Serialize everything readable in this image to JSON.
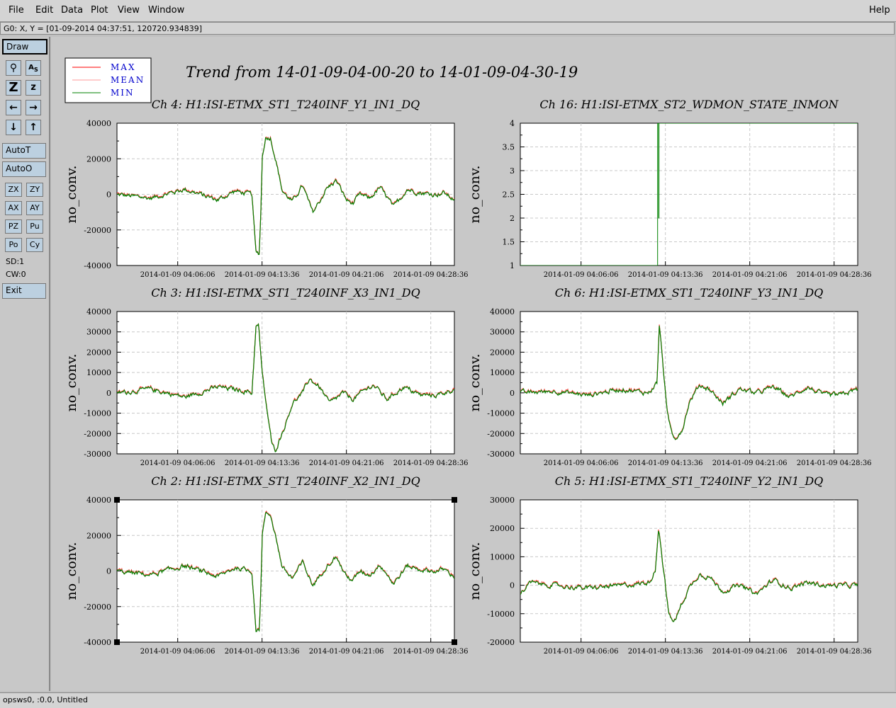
{
  "menu": {
    "file": "File",
    "edit": "Edit",
    "data": "Data",
    "plot": "Plot",
    "view": "View",
    "window": "Window",
    "help": "Help"
  },
  "coord_readout": "G0: X, Y = [01-09-2014 04:37:51, 120720.934839]",
  "toolbar": {
    "draw": "Draw",
    "autoT": "AutoT",
    "autoO": "AutoO",
    "zx": "ZX",
    "zy": "ZY",
    "ax": "AX",
    "ay": "AY",
    "pz": "PZ",
    "pu": "Pu",
    "po": "Po",
    "cy": "Cy",
    "sd": "SD:1",
    "cw": "CW:0",
    "exit": "Exit"
  },
  "status": "opsws0, :0.0, Untitled",
  "colors": {
    "max": "#ff0000",
    "mean": "#ff9999",
    "min": "#008000",
    "legend_text": "#0000cc"
  },
  "legend": {
    "max": "MAX",
    "mean": "MEAN",
    "min": "MIN"
  },
  "main_title": "Trend from 14-01-09-04-00-20 to 14-01-09-04-30-19",
  "chart_data": [
    {
      "type": "line",
      "title": "Ch 4: H1:ISI-ETMX_ST1_T240INF_Y1_IN1_DQ",
      "ylabel": "no_conv.",
      "ylim": [
        -40000,
        40000
      ],
      "yticks": [
        "40000",
        "20000",
        "0",
        "-20000",
        "-40000"
      ],
      "xticks": [
        "2014-01-09 04:06:06",
        "2014-01-09 04:13:36",
        "2014-01-09 04:21:06",
        "2014-01-09 04:28:36"
      ],
      "t": [
        0,
        0.1,
        0.2,
        0.3,
        0.35,
        0.4,
        0.412,
        0.422,
        0.428,
        0.43,
        0.44,
        0.455,
        0.47,
        0.49,
        0.52,
        0.55,
        0.58,
        0.6,
        0.62,
        0.65,
        0.68,
        0.7,
        0.72,
        0.75,
        0.78,
        0.82,
        0.86,
        0.9,
        0.94,
        0.97,
        1
      ],
      "values": [
        0,
        -2000,
        3000,
        -3000,
        2000,
        0,
        -33000,
        -33000,
        0,
        20000,
        32000,
        32000,
        20000,
        2000,
        -4000,
        5000,
        -10000,
        -4000,
        3000,
        8000,
        -3000,
        -5000,
        0,
        -2000,
        4000,
        -7000,
        3000,
        1000,
        0,
        1000,
        -3000
      ],
      "series": [
        {
          "name": "MAX"
        },
        {
          "name": "MEAN"
        },
        {
          "name": "MIN"
        }
      ]
    },
    {
      "type": "line",
      "title": "Ch 16: H1:ISI-ETMX_ST2_WDMON_STATE_INMON",
      "ylabel": "no_conv.",
      "ylim": [
        1,
        4
      ],
      "yticks": [
        "4",
        "3.5",
        "3",
        "2.5",
        "2",
        "1.5",
        "1"
      ],
      "xticks": [
        "2014-01-09 04:06:06",
        "2014-01-09 04:13:36",
        "2014-01-09 04:21:06",
        "2014-01-09 04:28:36"
      ],
      "t": [
        0,
        0.407,
        0.407,
        0.41,
        0.41,
        0.411,
        0.411,
        1
      ],
      "values": [
        1,
        1,
        4,
        4,
        2,
        2,
        4,
        4
      ],
      "series": [
        {
          "name": "MAX"
        },
        {
          "name": "MEAN"
        },
        {
          "name": "MIN"
        }
      ]
    },
    {
      "type": "line",
      "title": "Ch 3: H1:ISI-ETMX_ST1_T240INF_X3_IN1_DQ",
      "ylabel": "no_conv.",
      "ylim": [
        -30000,
        40000
      ],
      "yticks": [
        "40000",
        "30000",
        "20000",
        "10000",
        "0",
        "-10000",
        "-20000",
        "-30000"
      ],
      "xticks": [
        "2014-01-09 04:06:06",
        "2014-01-09 04:13:36",
        "2014-01-09 04:21:06",
        "2014-01-09 04:28:36"
      ],
      "t": [
        0,
        0.1,
        0.2,
        0.3,
        0.38,
        0.4,
        0.412,
        0.42,
        0.43,
        0.45,
        0.46,
        0.47,
        0.5,
        0.52,
        0.55,
        0.57,
        0.6,
        0.63,
        0.67,
        0.7,
        0.73,
        0.76,
        0.8,
        0.85,
        0.9,
        0.95,
        1
      ],
      "values": [
        0,
        2000,
        -2000,
        3000,
        1000,
        0,
        33000,
        33000,
        10000,
        -15000,
        -26000,
        -28000,
        -15000,
        -5000,
        0,
        7000,
        3000,
        -5000,
        0,
        -3000,
        1000,
        4000,
        -3000,
        3000,
        -1000,
        -1000,
        2000
      ],
      "series": [
        {
          "name": "MAX"
        },
        {
          "name": "MEAN"
        },
        {
          "name": "MIN"
        }
      ]
    },
    {
      "type": "line",
      "title": "Ch 6: H1:ISI-ETMX_ST1_T240INF_Y3_IN1_DQ",
      "ylabel": "no_conv.",
      "ylim": [
        -30000,
        40000
      ],
      "yticks": [
        "40000",
        "30000",
        "20000",
        "10000",
        "0",
        "-10000",
        "-20000",
        "-30000"
      ],
      "xticks": [
        "2014-01-09 04:06:06",
        "2014-01-09 04:13:36",
        "2014-01-09 04:21:06",
        "2014-01-09 04:28:36"
      ],
      "t": [
        0,
        0.1,
        0.2,
        0.3,
        0.38,
        0.405,
        0.412,
        0.42,
        0.435,
        0.45,
        0.46,
        0.48,
        0.5,
        0.53,
        0.56,
        0.6,
        0.65,
        0.7,
        0.75,
        0.8,
        0.85,
        0.9,
        0.95,
        1
      ],
      "values": [
        0,
        1000,
        -1000,
        2000,
        0,
        5000,
        33000,
        20000,
        -10000,
        -20000,
        -22000,
        -18000,
        -5000,
        4000,
        2000,
        -5000,
        2000,
        0,
        3000,
        -2000,
        3000,
        -1000,
        -1000,
        2000
      ],
      "series": [
        {
          "name": "MAX"
        },
        {
          "name": "MEAN"
        },
        {
          "name": "MIN"
        }
      ]
    },
    {
      "type": "line",
      "title": "Ch 2: H1:ISI-ETMX_ST1_T240INF_X2_IN1_DQ",
      "ylabel": "no_conv.",
      "ylim": [
        -40000,
        40000
      ],
      "yticks": [
        "40000",
        "20000",
        "0",
        "-20000",
        "-40000"
      ],
      "xticks": [
        "2014-01-09 04:06:06",
        "2014-01-09 04:13:36",
        "2014-01-09 04:21:06",
        "2014-01-09 04:28:36"
      ],
      "t": [
        0,
        0.1,
        0.2,
        0.3,
        0.35,
        0.4,
        0.412,
        0.422,
        0.428,
        0.43,
        0.44,
        0.455,
        0.47,
        0.49,
        0.52,
        0.55,
        0.58,
        0.6,
        0.62,
        0.65,
        0.68,
        0.7,
        0.72,
        0.75,
        0.78,
        0.82,
        0.86,
        0.9,
        0.94,
        0.97,
        1
      ],
      "values": [
        0,
        -2000,
        3000,
        -3000,
        2000,
        0,
        -33000,
        -33000,
        0,
        20000,
        32000,
        32000,
        20000,
        2000,
        -4000,
        5000,
        -8000,
        -3000,
        3000,
        8000,
        -3000,
        -5000,
        0,
        -2000,
        4000,
        -7000,
        3000,
        1000,
        0,
        1000,
        -3000
      ],
      "series": [
        {
          "name": "MAX"
        },
        {
          "name": "MEAN"
        },
        {
          "name": "MIN"
        }
      ]
    },
    {
      "type": "line",
      "title": "Ch 5: H1:ISI-ETMX_ST1_T240INF_Y2_IN1_DQ",
      "ylabel": "no_conv.",
      "ylim": [
        -20000,
        30000
      ],
      "yticks": [
        "30000",
        "20000",
        "10000",
        "0",
        "-10000",
        "-20000"
      ],
      "xticks": [
        "2014-01-09 04:06:06",
        "2014-01-09 04:13:36",
        "2014-01-09 04:21:06",
        "2014-01-09 04:28:36"
      ],
      "t": [
        0,
        0.03,
        0.1,
        0.2,
        0.3,
        0.38,
        0.4,
        0.41,
        0.42,
        0.44,
        0.45,
        0.46,
        0.48,
        0.5,
        0.53,
        0.56,
        0.6,
        0.65,
        0.7,
        0.75,
        0.8,
        0.85,
        0.9,
        0.95,
        1
      ],
      "values": [
        -3000,
        1000,
        0,
        -1000,
        0,
        1000,
        5000,
        21000,
        10000,
        -10000,
        -12500,
        -12000,
        -6000,
        -1000,
        4000,
        3000,
        -2000,
        0,
        -3000,
        2000,
        -1000,
        1000,
        0,
        0,
        0
      ],
      "series": [
        {
          "name": "MAX"
        },
        {
          "name": "MEAN"
        },
        {
          "name": "MIN"
        }
      ]
    }
  ]
}
